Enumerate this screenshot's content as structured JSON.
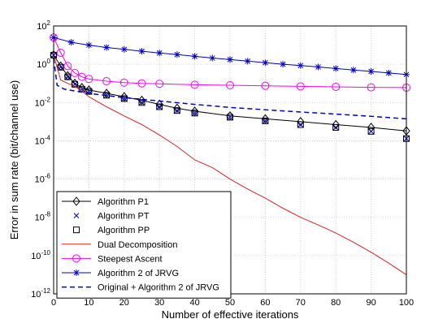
{
  "chart_data": {
    "type": "line",
    "xlabel": "Number of effective iterations",
    "ylabel": "Error in sum rate (bit/channel use)",
    "xlim": [
      0,
      100
    ],
    "ylim_exponents": [
      -12,
      2
    ],
    "yscale": "log",
    "grid": true,
    "legend_position": "bottom-left",
    "x_ticks": [
      "0",
      "10",
      "20",
      "30",
      "40",
      "50",
      "60",
      "70",
      "80",
      "90",
      "100"
    ],
    "y_tick_base": "10",
    "y_tick_exponents": [
      "2",
      "0",
      "-2",
      "-4",
      "-6",
      "-8",
      "-10",
      "-12"
    ],
    "series": [
      {
        "name": "Algorithm P1",
        "color": "#000000",
        "line": "solid",
        "marker": "diamond",
        "x": [
          0,
          2,
          4,
          6,
          8,
          10,
          15,
          20,
          25,
          30,
          35,
          40,
          50,
          60,
          70,
          80,
          90,
          100
        ],
        "y": [
          3,
          0.8,
          0.25,
          0.1,
          0.06,
          0.045,
          0.03,
          0.02,
          0.013,
          0.008,
          0.005,
          0.0035,
          0.002,
          0.0014,
          0.001,
          0.0007,
          0.0005,
          0.00033
        ]
      },
      {
        "name": "Algorithm PT",
        "color": "#0000cc",
        "line": "none",
        "marker": "x",
        "x": [
          0,
          2,
          4,
          6,
          8,
          10,
          15,
          20,
          25,
          30,
          35,
          40,
          50,
          60,
          70,
          80,
          90,
          100
        ],
        "y": [
          3,
          0.7,
          0.22,
          0.09,
          0.05,
          0.038,
          0.024,
          0.016,
          0.01,
          0.006,
          0.0038,
          0.0028,
          0.0017,
          0.0011,
          0.0007,
          0.0005,
          0.00031,
          0.00013
        ]
      },
      {
        "name": "Algorithm PP",
        "color": "#000000",
        "line": "none",
        "marker": "square",
        "x": [
          0,
          2,
          4,
          6,
          8,
          10,
          15,
          20,
          25,
          30,
          35,
          40,
          50,
          60,
          70,
          80,
          90,
          100
        ],
        "y": [
          3,
          0.7,
          0.22,
          0.09,
          0.05,
          0.038,
          0.024,
          0.016,
          0.01,
          0.006,
          0.0038,
          0.0028,
          0.0017,
          0.0011,
          0.0007,
          0.0005,
          0.00031,
          0.00013
        ]
      },
      {
        "name": "Dual Decomposition",
        "color": "#dd2222",
        "line": "solid",
        "marker": "none",
        "x": [
          0,
          2,
          4,
          6,
          8,
          10,
          15,
          20,
          25,
          30,
          35,
          40,
          45,
          50,
          55,
          60,
          65,
          70,
          75,
          80,
          85,
          90,
          95,
          100
        ],
        "y": [
          3,
          0.15,
          0.1,
          0.07,
          0.04,
          0.02,
          0.006,
          0.002,
          0.0007,
          0.0002,
          5e-05,
          1e-05,
          4e-06,
          1e-06,
          3e-07,
          1e-07,
          3e-08,
          1e-08,
          4e-09,
          1.5e-09,
          5e-10,
          1.5e-10,
          4e-11,
          1e-11
        ]
      },
      {
        "name": "Steepest Ascent",
        "color": "#ff00ff",
        "line": "solid",
        "marker": "circle",
        "x": [
          0,
          2,
          4,
          6,
          8,
          10,
          15,
          20,
          25,
          30,
          40,
          50,
          60,
          70,
          80,
          90,
          100
        ],
        "y": [
          25,
          4,
          0.8,
          0.35,
          0.22,
          0.17,
          0.13,
          0.11,
          0.1,
          0.095,
          0.085,
          0.08,
          0.075,
          0.07,
          0.066,
          0.062,
          0.06
        ]
      },
      {
        "name": "Algorithm 2 of JRVG",
        "color": "#0000cc",
        "line": "solid",
        "marker": "asterisk",
        "x": [
          0,
          5,
          10,
          15,
          20,
          25,
          30,
          35,
          40,
          45,
          50,
          55,
          60,
          65,
          70,
          75,
          80,
          85,
          90,
          95,
          100
        ],
        "y": [
          25,
          14,
          10,
          7.5,
          6,
          4.8,
          3.9,
          3.2,
          2.6,
          2.1,
          1.75,
          1.45,
          1.2,
          1.0,
          0.85,
          0.72,
          0.6,
          0.5,
          0.42,
          0.35,
          0.29
        ]
      },
      {
        "name": "Original + Algorithm 2 of JRVG",
        "color": "#0000cc",
        "line": "dashed",
        "marker": "none",
        "x": [
          0,
          1,
          3,
          6,
          10,
          20,
          30,
          40,
          50,
          60,
          70,
          80,
          90,
          100
        ],
        "y": [
          2,
          0.08,
          0.05,
          0.04,
          0.03,
          0.018,
          0.012,
          0.008,
          0.0055,
          0.0042,
          0.0032,
          0.0025,
          0.0019,
          0.0014
        ]
      }
    ]
  }
}
